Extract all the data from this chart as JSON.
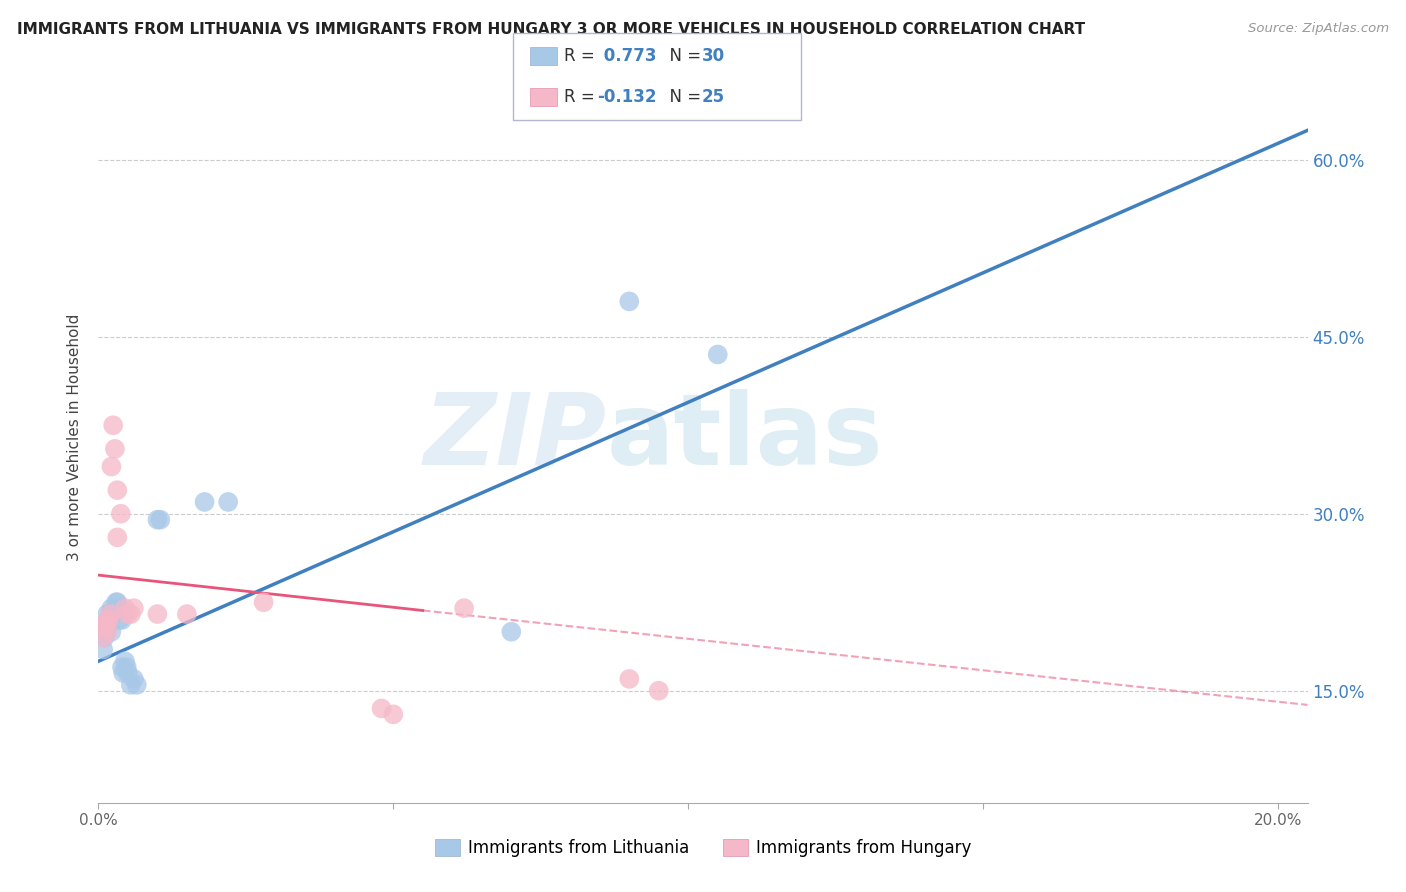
{
  "title": "IMMIGRANTS FROM LITHUANIA VS IMMIGRANTS FROM HUNGARY 3 OR MORE VEHICLES IN HOUSEHOLD CORRELATION CHART",
  "source": "Source: ZipAtlas.com",
  "ylabel": "3 or more Vehicles in Household",
  "yticks_labels": [
    "15.0%",
    "30.0%",
    "45.0%",
    "60.0%"
  ],
  "ytick_vals": [
    0.15,
    0.3,
    0.45,
    0.6
  ],
  "xtick_vals": [
    0.0,
    0.05,
    0.1,
    0.15,
    0.2
  ],
  "xtick_labels": [
    "0.0%",
    "",
    "",
    "",
    "20.0%"
  ],
  "xlim": [
    0.0,
    0.205
  ],
  "ylim": [
    0.055,
    0.675
  ],
  "color_blue": "#a8c8e8",
  "color_pink": "#f5b8c8",
  "line_blue": "#4080c0",
  "line_pink": "#e8547a",
  "watermark_zip": "ZIP",
  "watermark_atlas": "atlas",
  "legend_labels": [
    "Immigrants from Lithuania",
    "Immigrants from Hungary"
  ],
  "blue_points": [
    [
      0.0008,
      0.185
    ],
    [
      0.001,
      0.195
    ],
    [
      0.0012,
      0.2
    ],
    [
      0.0015,
      0.215
    ],
    [
      0.0015,
      0.205
    ],
    [
      0.0018,
      0.21
    ],
    [
      0.002,
      0.215
    ],
    [
      0.0022,
      0.22
    ],
    [
      0.0022,
      0.2
    ],
    [
      0.0025,
      0.215
    ],
    [
      0.0028,
      0.215
    ],
    [
      0.0028,
      0.22
    ],
    [
      0.003,
      0.225
    ],
    [
      0.0032,
      0.225
    ],
    [
      0.0035,
      0.21
    ],
    [
      0.0038,
      0.22
    ],
    [
      0.004,
      0.21
    ],
    [
      0.004,
      0.17
    ],
    [
      0.0042,
      0.165
    ],
    [
      0.0045,
      0.175
    ],
    [
      0.0048,
      0.17
    ],
    [
      0.005,
      0.165
    ],
    [
      0.0055,
      0.155
    ],
    [
      0.006,
      0.16
    ],
    [
      0.0065,
      0.155
    ],
    [
      0.01,
      0.295
    ],
    [
      0.0105,
      0.295
    ],
    [
      0.018,
      0.31
    ],
    [
      0.022,
      0.31
    ],
    [
      0.07,
      0.2
    ],
    [
      0.09,
      0.48
    ],
    [
      0.105,
      0.435
    ]
  ],
  "pink_points": [
    [
      0.0008,
      0.195
    ],
    [
      0.001,
      0.205
    ],
    [
      0.0012,
      0.205
    ],
    [
      0.0015,
      0.21
    ],
    [
      0.0015,
      0.2
    ],
    [
      0.0018,
      0.21
    ],
    [
      0.002,
      0.215
    ],
    [
      0.0022,
      0.34
    ],
    [
      0.0025,
      0.375
    ],
    [
      0.0028,
      0.355
    ],
    [
      0.0032,
      0.28
    ],
    [
      0.0032,
      0.32
    ],
    [
      0.0038,
      0.3
    ],
    [
      0.0045,
      0.22
    ],
    [
      0.005,
      0.215
    ],
    [
      0.0055,
      0.215
    ],
    [
      0.006,
      0.22
    ],
    [
      0.01,
      0.215
    ],
    [
      0.015,
      0.215
    ],
    [
      0.028,
      0.225
    ],
    [
      0.048,
      0.135
    ],
    [
      0.05,
      0.13
    ],
    [
      0.062,
      0.22
    ],
    [
      0.09,
      0.16
    ],
    [
      0.095,
      0.15
    ]
  ],
  "blue_line": [
    [
      0.0,
      0.175
    ],
    [
      0.205,
      0.625
    ]
  ],
  "pink_line_solid": [
    [
      0.0,
      0.248
    ],
    [
      0.055,
      0.218
    ]
  ],
  "pink_line_dashed": [
    [
      0.055,
      0.218
    ],
    [
      0.205,
      0.138
    ]
  ]
}
